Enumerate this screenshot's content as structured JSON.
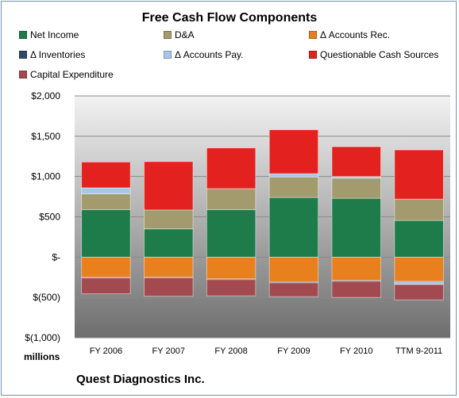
{
  "chart_data": {
    "type": "bar",
    "title": "Free Cash Flow Components",
    "categories": [
      "FY 2006",
      "FY 2007",
      "FY 2008",
      "FY 2009",
      "FY 2010",
      "TTM 9-2011"
    ],
    "ylim": [
      -1000,
      2000
    ],
    "yticks": [
      2000,
      1500,
      1000,
      500,
      0,
      -500,
      -1000
    ],
    "ytick_labels": [
      "$2,000",
      "$1,500",
      "$1,000",
      "$500",
      "$-",
      "$(500)",
      "$(1,000)"
    ],
    "ylabel": "millions",
    "legend_position": "top",
    "series": [
      {
        "name": "Net Income",
        "color": "#1e7b4a",
        "values": [
          590,
          350,
          590,
          740,
          730,
          455
        ]
      },
      {
        "name": "D&A",
        "color": "#a39a6d",
        "values": [
          195,
          235,
          260,
          255,
          250,
          265
        ]
      },
      {
        "name": "Δ Accounts Rec.",
        "color": "#e8801e",
        "values": [
          -250,
          -250,
          -270,
          -310,
          -290,
          -300
        ]
      },
      {
        "name": "Δ Inventories",
        "color": "#2f4a68",
        "values": [
          -10,
          -5,
          -10,
          -10,
          -10,
          -10
        ]
      },
      {
        "name": "Δ Accounts Pay.",
        "color": "#a9c6ea",
        "values": [
          75,
          0,
          0,
          40,
          20,
          -30
        ]
      },
      {
        "name": "Questionable Cash Sources",
        "color": "#e3221f",
        "values": [
          320,
          600,
          505,
          545,
          370,
          610
        ]
      },
      {
        "name": "Capital Expenditure",
        "color": "#a24a4f",
        "values": [
          -195,
          -230,
          -200,
          -170,
          -200,
          -190
        ]
      }
    ],
    "grid": true
  },
  "footer": {
    "company": "Quest Diagnostics Inc.",
    "units": "millions"
  }
}
